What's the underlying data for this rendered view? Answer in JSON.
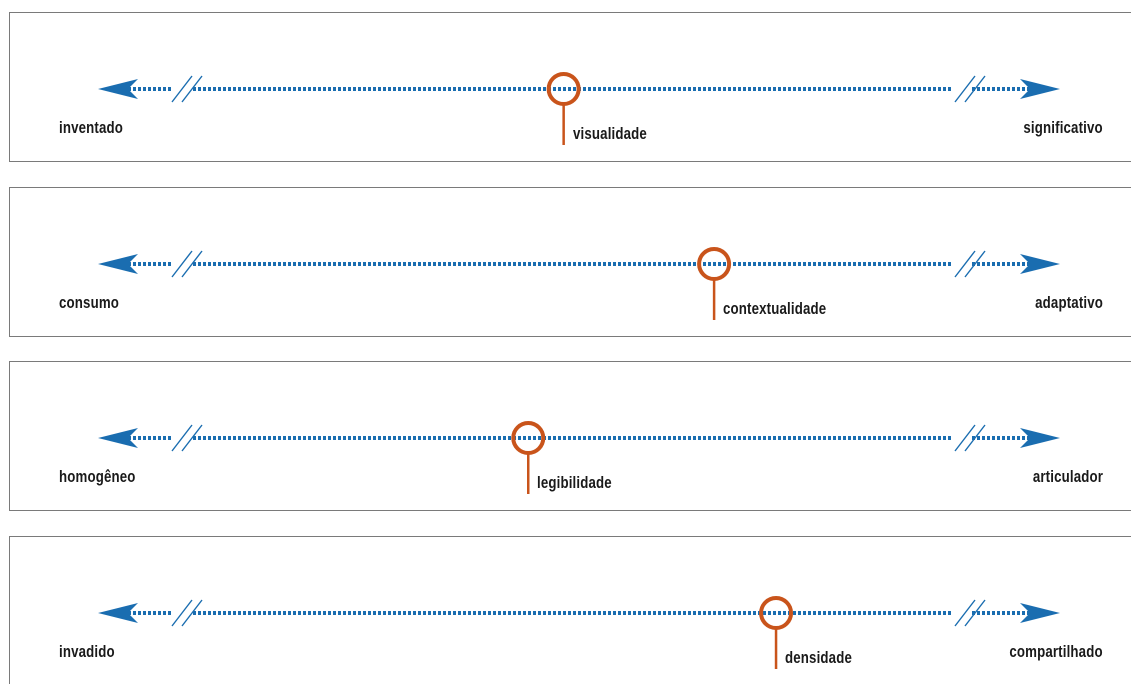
{
  "colors": {
    "axis": "#1a6db0",
    "marker": "#c9541b",
    "text": "#1a1a1a",
    "border": "#7a7a7a"
  },
  "scales": [
    {
      "left_label": "inventado",
      "right_label": "significativo",
      "marker_label": "visualidade",
      "position": 0.49
    },
    {
      "left_label": "consumo",
      "right_label": "adaptativo",
      "marker_label": "contextualidade",
      "position": 0.66
    },
    {
      "left_label": "homogêneo",
      "right_label": "articulador",
      "marker_label": "legibilidade",
      "position": 0.45
    },
    {
      "left_label": "invadido",
      "right_label": "compartilhado",
      "marker_label": "densidade",
      "position": 0.73
    }
  ]
}
